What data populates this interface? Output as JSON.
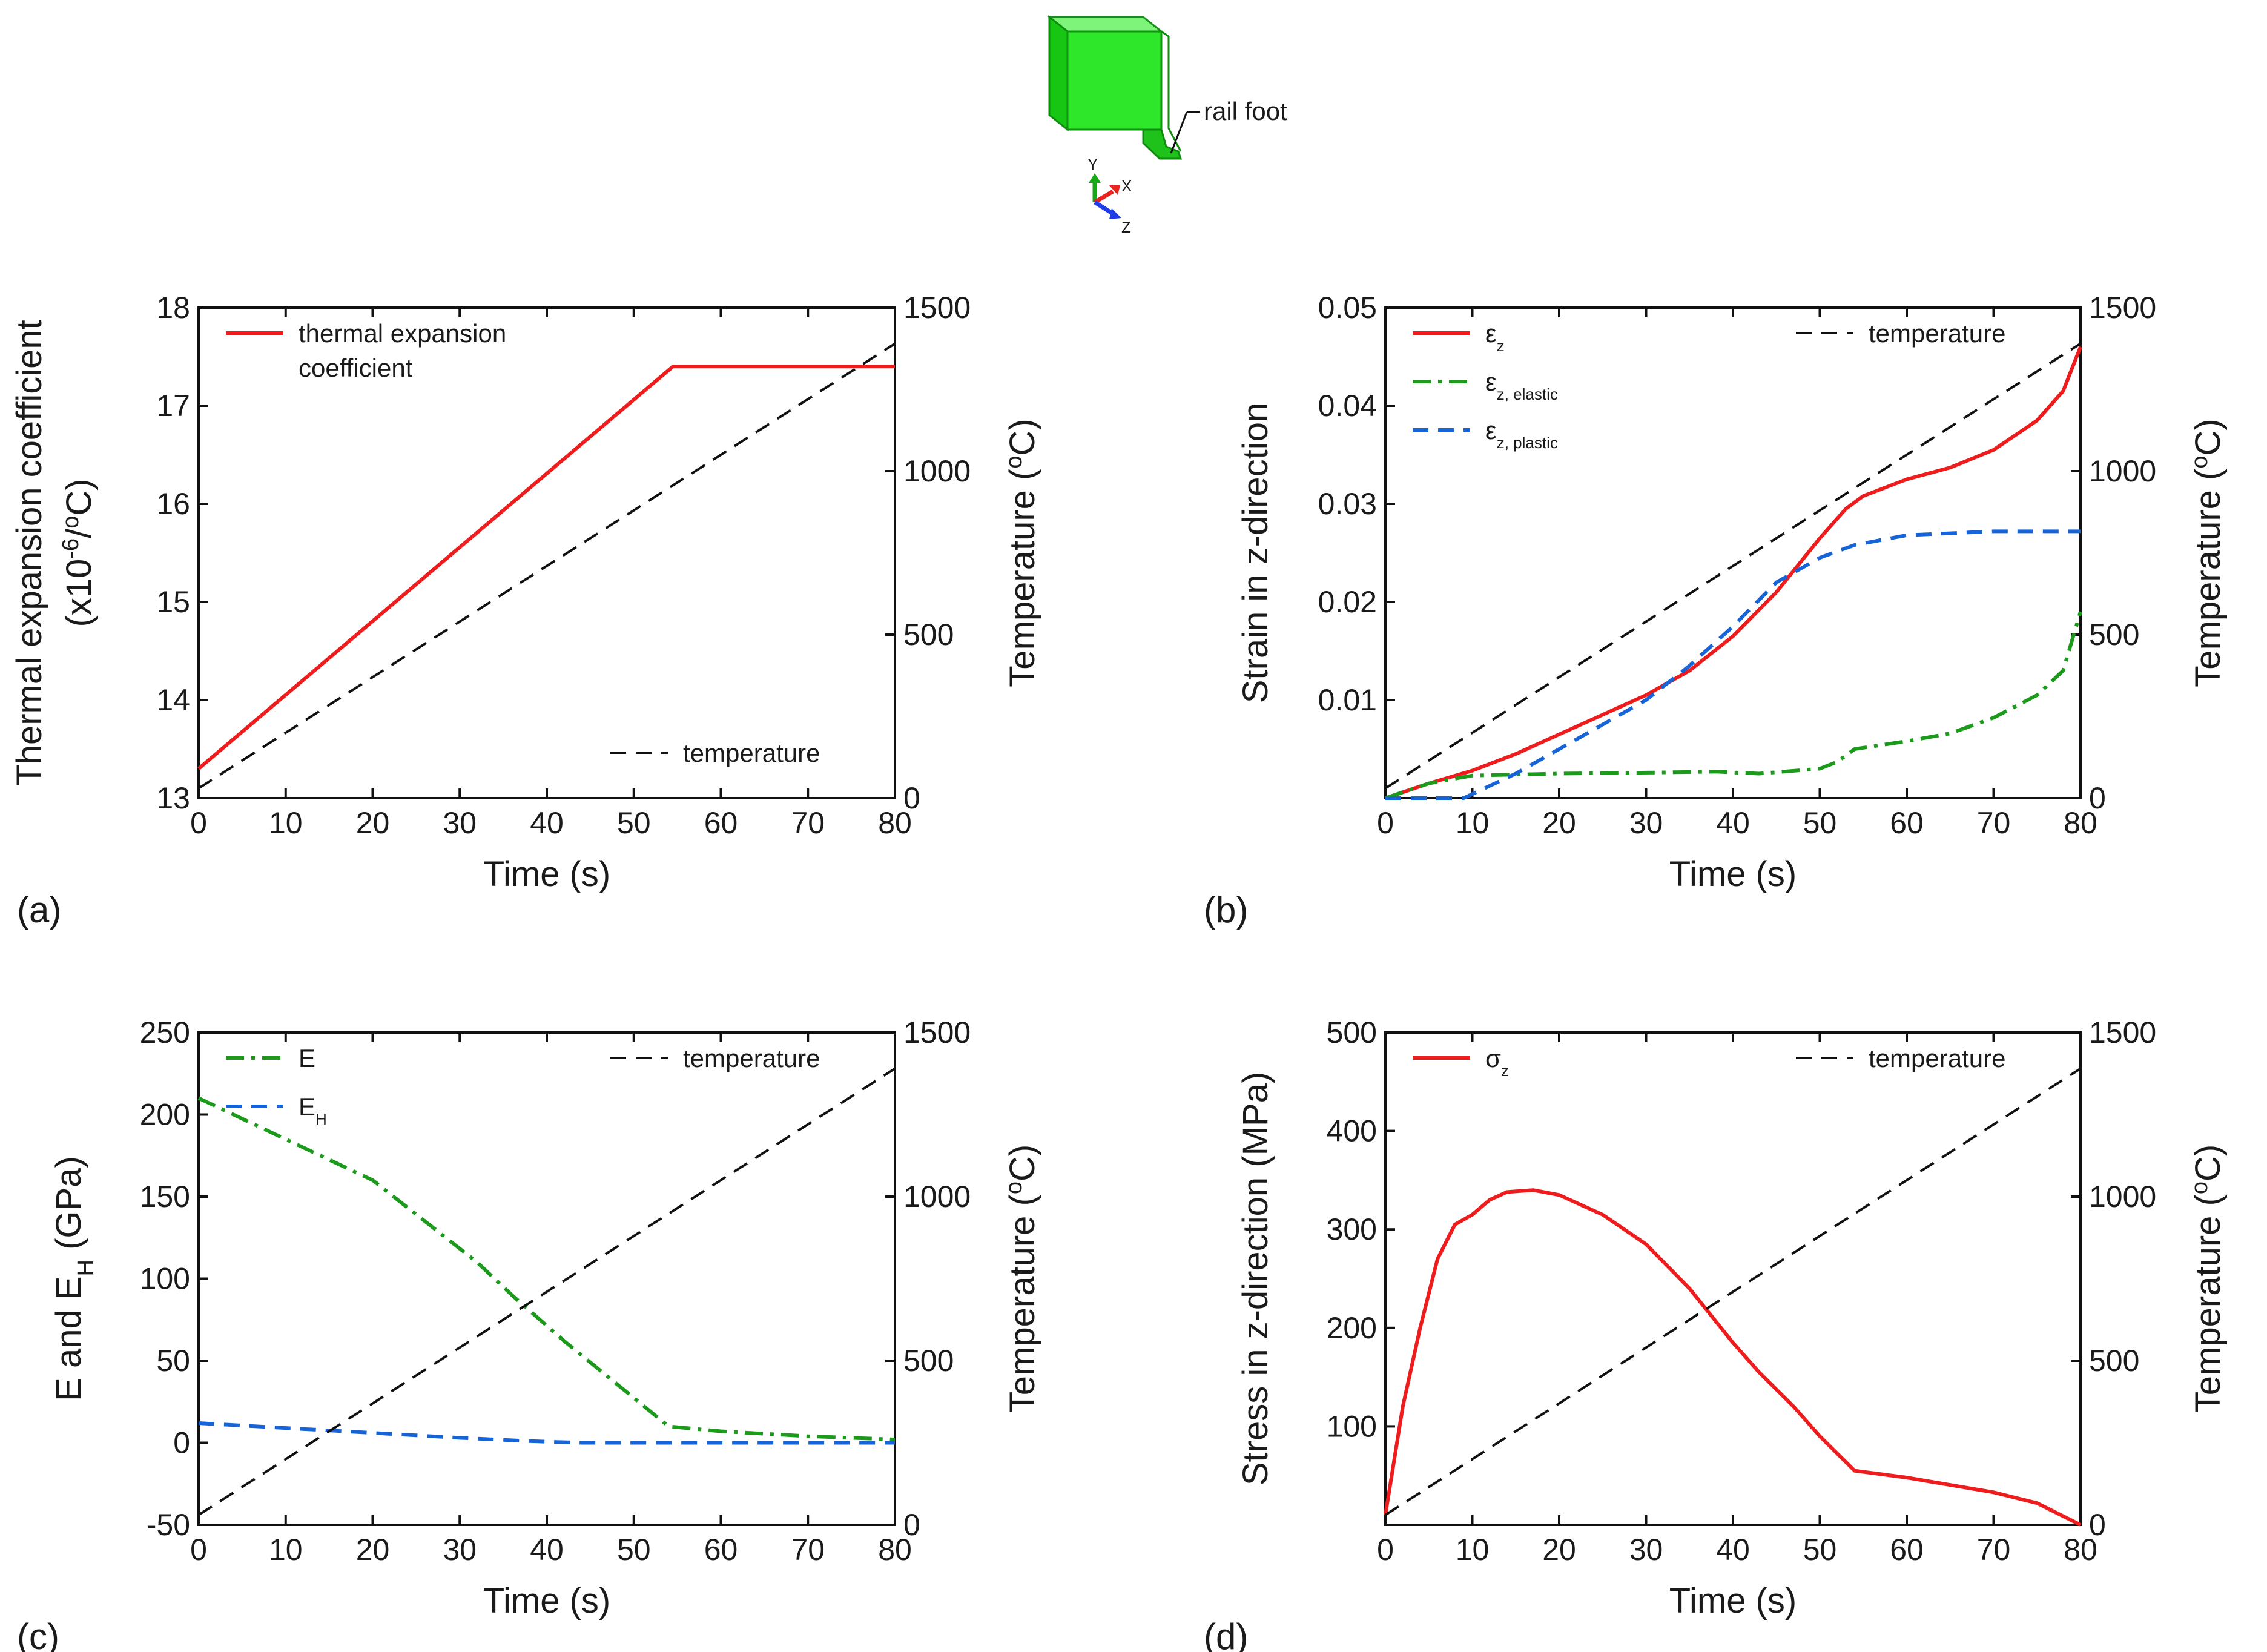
{
  "inset": {
    "callout": "rail foot",
    "axis_x": "X",
    "axis_y": "Y",
    "axis_z": "Z",
    "colors": {
      "rail": "#22e81e",
      "x": "#e8231e",
      "y": "#18a818",
      "z": "#1e3ce8"
    }
  },
  "chart_data": [
    {
      "id": "a",
      "panel_label": "(a)",
      "type": "line",
      "xlabel": "Time (s)",
      "ylabel_lines": [
        "Thermal expansion coefficient",
        "(x10",
        "-6",
        "/",
        "o",
        "C)"
      ],
      "y2label": [
        "Temperature (",
        "o",
        "C)"
      ],
      "xlim": [
        0,
        80
      ],
      "xticks": [
        0,
        10,
        20,
        30,
        40,
        50,
        60,
        70,
        80
      ],
      "ylim": [
        13,
        18
      ],
      "yticks": [
        13,
        14,
        15,
        16,
        17,
        18
      ],
      "y2lim": [
        0,
        1500
      ],
      "y2ticks": [
        0,
        500,
        1000,
        1500
      ],
      "series": [
        {
          "name_parts": [
            "thermal expansion",
            "coefficient"
          ],
          "axis": "left",
          "color": "#ee1c1c",
          "dash": "solid",
          "x": [
            0,
            54.5,
            80
          ],
          "y": [
            13.3,
            17.4,
            17.4
          ]
        },
        {
          "name_parts": [
            "temperature"
          ],
          "axis": "right",
          "color": "#111111",
          "dash": "dash",
          "x": [
            0,
            80
          ],
          "y": [
            30,
            1390
          ]
        }
      ],
      "legend": [
        {
          "series": 0,
          "place": "top-left"
        },
        {
          "series": 1,
          "place": "bottom-right"
        }
      ]
    },
    {
      "id": "b",
      "panel_label": "(b)",
      "type": "line",
      "xlabel": "Time (s)",
      "ylabel_lines": [
        "Strain in z-direction"
      ],
      "y2label": [
        "Temperature (",
        "o",
        "C)"
      ],
      "xlim": [
        0,
        80
      ],
      "xticks": [
        0,
        10,
        20,
        30,
        40,
        50,
        60,
        70,
        80
      ],
      "ylim": [
        0,
        0.05
      ],
      "yticks": [
        0.01,
        0.02,
        0.03,
        0.04,
        0.05
      ],
      "yticklabels": [
        "0.01",
        "0.02",
        "0.03",
        "0.04",
        "0.05"
      ],
      "y2lim": [
        0,
        1500
      ],
      "y2ticks": [
        0,
        500,
        1000,
        1500
      ],
      "series": [
        {
          "name_parts": [
            "ε",
            "z"
          ],
          "axis": "left",
          "color": "#ee1c1c",
          "dash": "solid",
          "x": [
            0,
            5,
            10,
            15,
            20,
            25,
            30,
            35,
            40,
            45,
            50,
            53,
            55,
            60,
            65,
            70,
            75,
            78,
            80
          ],
          "y": [
            0,
            0.0015,
            0.0028,
            0.0045,
            0.0065,
            0.0085,
            0.0105,
            0.013,
            0.0165,
            0.021,
            0.0265,
            0.0295,
            0.0308,
            0.0325,
            0.0337,
            0.0355,
            0.0385,
            0.0415,
            0.046
          ]
        },
        {
          "name_parts": [
            "ε",
            "z, elastic"
          ],
          "axis": "left",
          "color": "#1b9a1b",
          "dash": "dashdot",
          "x": [
            0,
            5,
            10,
            20,
            30,
            38,
            43,
            50,
            52,
            54,
            60,
            65,
            70,
            75,
            78,
            80
          ],
          "y": [
            0,
            0.0015,
            0.0023,
            0.0025,
            0.0026,
            0.0027,
            0.0025,
            0.003,
            0.0037,
            0.005,
            0.0058,
            0.0066,
            0.0082,
            0.0105,
            0.013,
            0.019
          ]
        },
        {
          "name_parts": [
            "ε",
            "z, plastic"
          ],
          "axis": "left",
          "color": "#1763d8",
          "dash": "dash",
          "x": [
            0,
            9,
            15,
            20,
            25,
            30,
            35,
            40,
            45,
            50,
            54,
            60,
            65,
            70,
            80
          ],
          "y": [
            0,
            0,
            0.0025,
            0.005,
            0.0075,
            0.01,
            0.0135,
            0.0175,
            0.022,
            0.0245,
            0.0258,
            0.0268,
            0.027,
            0.0272,
            0.0272
          ]
        },
        {
          "name_parts": [
            "temperature"
          ],
          "axis": "right",
          "color": "#111111",
          "dash": "dash",
          "x": [
            0,
            80
          ],
          "y": [
            30,
            1390
          ]
        }
      ],
      "legend": [
        {
          "series": 0,
          "place": "top-left"
        },
        {
          "series": 1,
          "place": "top-left"
        },
        {
          "series": 2,
          "place": "top-left"
        },
        {
          "series": 3,
          "place": "top-right"
        }
      ]
    },
    {
      "id": "c",
      "panel_label": "(c)",
      "type": "line",
      "xlabel": "Time (s)",
      "ylabel_lines": [
        "E and E",
        "H",
        " (GPa)"
      ],
      "y2label": [
        "Temperature (",
        "o",
        "C)"
      ],
      "xlim": [
        0,
        80
      ],
      "xticks": [
        0,
        10,
        20,
        30,
        40,
        50,
        60,
        70,
        80
      ],
      "ylim": [
        -50,
        250
      ],
      "yticks": [
        -50,
        0,
        50,
        100,
        150,
        200,
        250
      ],
      "y2lim": [
        0,
        1500
      ],
      "y2ticks": [
        0,
        500,
        1000,
        1500
      ],
      "series": [
        {
          "name_parts": [
            "E"
          ],
          "axis": "left",
          "color": "#1b9a1b",
          "dash": "dashdot",
          "x": [
            0,
            10,
            20,
            32,
            36,
            42,
            48,
            54,
            60,
            70,
            80
          ],
          "y": [
            210,
            185,
            160,
            110,
            90,
            62,
            36,
            10,
            7,
            4,
            2
          ]
        },
        {
          "name_parts": [
            "E",
            "H"
          ],
          "axis": "left",
          "color": "#1763d8",
          "dash": "dash",
          "x": [
            0,
            10,
            20,
            30,
            38,
            44,
            80
          ],
          "y": [
            12,
            9,
            6,
            3,
            1,
            0,
            0
          ]
        },
        {
          "name_parts": [
            "temperature"
          ],
          "axis": "right",
          "color": "#111111",
          "dash": "dash",
          "x": [
            0,
            80
          ],
          "y": [
            30,
            1390
          ]
        }
      ],
      "legend": [
        {
          "series": 0,
          "place": "top-left"
        },
        {
          "series": 1,
          "place": "top-left"
        },
        {
          "series": 2,
          "place": "top-right"
        }
      ]
    },
    {
      "id": "d",
      "panel_label": "(d)",
      "type": "line",
      "xlabel": "Time (s)",
      "ylabel_lines": [
        "Stress in z-direction (MPa)"
      ],
      "y2label": [
        "Temperature (",
        "o",
        "C)"
      ],
      "xlim": [
        0,
        80
      ],
      "xticks": [
        0,
        10,
        20,
        30,
        40,
        50,
        60,
        70,
        80
      ],
      "ylim": [
        0,
        500
      ],
      "yticks": [
        100,
        200,
        300,
        400,
        500
      ],
      "y2lim": [
        0,
        1500
      ],
      "y2ticks": [
        0,
        500,
        1000,
        1500
      ],
      "series": [
        {
          "name_parts": [
            "σ",
            "z"
          ],
          "axis": "left",
          "color": "#ee1c1c",
          "dash": "solid",
          "x": [
            0,
            2,
            4,
            6,
            8,
            10,
            12,
            14,
            17,
            20,
            25,
            30,
            35,
            40,
            43,
            47,
            50,
            54,
            60,
            70,
            75,
            80
          ],
          "y": [
            10,
            120,
            200,
            270,
            305,
            315,
            330,
            338,
            340,
            335,
            315,
            285,
            240,
            185,
            155,
            120,
            90,
            55,
            48,
            33,
            22,
            0
          ]
        },
        {
          "name_parts": [
            "temperature"
          ],
          "axis": "right",
          "color": "#111111",
          "dash": "dash",
          "x": [
            0,
            80
          ],
          "y": [
            30,
            1390
          ]
        }
      ],
      "legend": [
        {
          "series": 0,
          "place": "top-left"
        },
        {
          "series": 1,
          "place": "top-right"
        }
      ]
    }
  ]
}
